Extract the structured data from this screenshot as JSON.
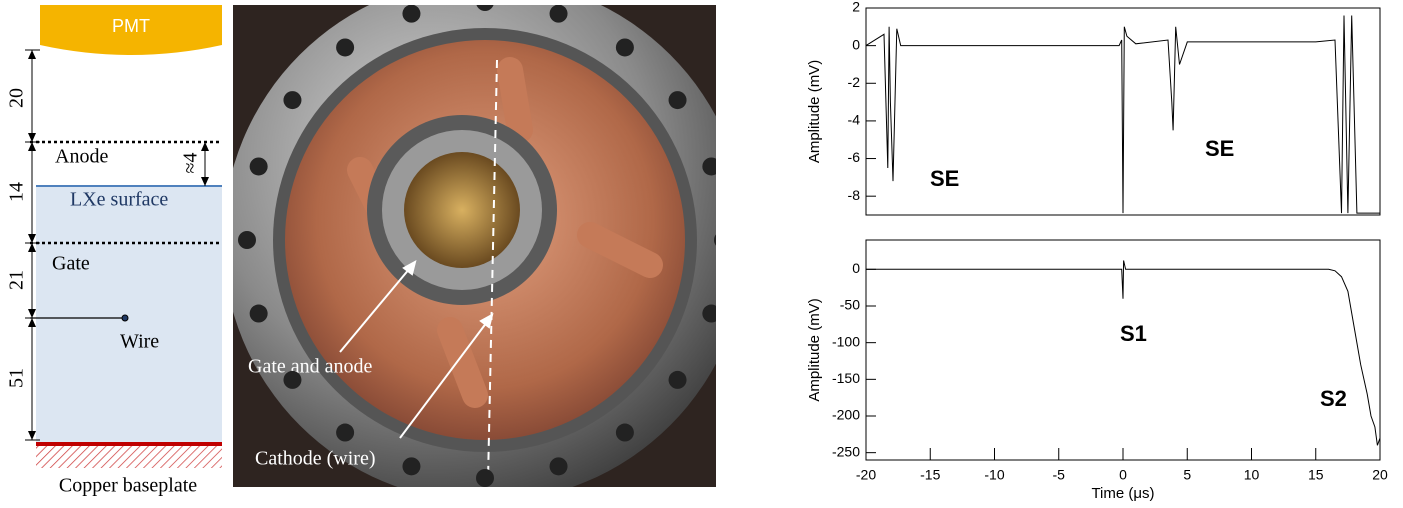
{
  "diagram": {
    "pmt": "PMT",
    "dimensions": [
      "20",
      "14",
      "21",
      "51"
    ],
    "gap": "≈4",
    "anode": "Anode",
    "surface": "LXe surface",
    "gate": "Gate",
    "wire": "Wire",
    "baseplate": "Copper baseplate"
  },
  "photo": {
    "gate_label": "Gate and anode",
    "cathode_label": "Cathode (wire)"
  },
  "chart_data": [
    {
      "type": "line",
      "ylabel": "Amplitude (mV)",
      "color": "#000000",
      "x": [
        -20,
        -18.6,
        -18.3,
        -18.2,
        -18.1,
        -17.9,
        -17.6,
        -17.3,
        -15,
        -10,
        -5,
        -0.3,
        -0.1,
        0,
        0.1,
        0.3,
        1,
        3.5,
        3.8,
        3.9,
        4.1,
        4.4,
        5,
        10,
        15,
        16.5,
        17,
        17.2,
        17.5,
        17.8,
        18.2,
        18.5,
        20
      ],
      "values": [
        0,
        0.6,
        -6.5,
        1,
        -3,
        -7.2,
        0.9,
        0,
        0,
        0,
        0,
        0,
        0.3,
        -8.9,
        1,
        0.5,
        0.1,
        0.3,
        -3,
        -4.5,
        1,
        -1,
        0.2,
        0.2,
        0.2,
        0.3,
        -8.9,
        1.6,
        -8.9,
        1.6,
        -8.9,
        -8.9,
        -8.9
      ],
      "xlim": [
        -20,
        20
      ],
      "ylim": [
        -9,
        2
      ],
      "yticks": [
        2,
        0,
        -2,
        -4,
        -6,
        -8
      ],
      "annotations": [
        "SE",
        "SE"
      ]
    },
    {
      "type": "line",
      "ylabel": "Amplitude (mV)",
      "xlabel": "Time (μs)",
      "color": "#000000",
      "x": [
        -20,
        -10,
        -0.1,
        0,
        0.05,
        0.2,
        10,
        15,
        16,
        16.5,
        17,
        17.5,
        18,
        18.5,
        19,
        19.3,
        19.6,
        19.8,
        20
      ],
      "values": [
        0,
        0,
        0,
        -40,
        12,
        0,
        0,
        0,
        0,
        -2,
        -10,
        -30,
        -80,
        -130,
        -170,
        -200,
        -215,
        -240,
        -230
      ],
      "xlim": [
        -20,
        20
      ],
      "ylim": [
        -260,
        40
      ],
      "xticks": [
        -20,
        -15,
        -10,
        -5,
        0,
        5,
        10,
        15,
        20
      ],
      "yticks": [
        0,
        -50,
        -100,
        -150,
        -200,
        -250
      ],
      "annotations": [
        "S1",
        "S2"
      ]
    }
  ]
}
